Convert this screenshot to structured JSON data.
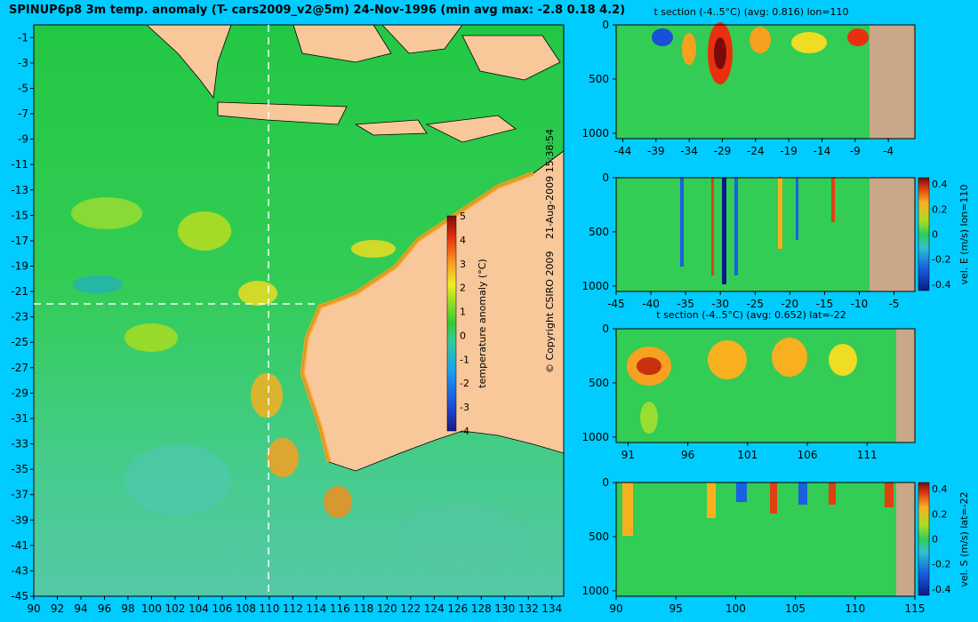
{
  "title": "SPINUP6p8 3m temp. anomaly (T- cars2009_v2@5m) 24-Nov-1996 (min avg max: -2.8 0.18 4.2)",
  "copyright": "© Copyright CSIRO 2009",
  "timestamp": "21-Aug-2009 15:38:54",
  "colors": {
    "background": "#00ccff",
    "land": "#f8c79a",
    "section_land": "#c8a888"
  },
  "chart_data": [
    {
      "type": "heatmap",
      "name": "map",
      "title": "",
      "x_ticks": [
        "90",
        "92",
        "94",
        "96",
        "98",
        "100",
        "102",
        "104",
        "106",
        "108",
        "110",
        "112",
        "114",
        "116",
        "118",
        "120",
        "122",
        "124",
        "126",
        "128",
        "130",
        "132",
        "134"
      ],
      "y_ticks": [
        "-1",
        "-3",
        "-5",
        "-7",
        "-9",
        "-11",
        "-13",
        "-15",
        "-17",
        "-19",
        "-21",
        "-23",
        "-25",
        "-27",
        "-29",
        "-31",
        "-33",
        "-35",
        "-37",
        "-39",
        "-41",
        "-43",
        "-45"
      ],
      "xlim": [
        90,
        135
      ],
      "ylim": [
        -45,
        0
      ],
      "crosshair": {
        "lon": 110,
        "lat": -22
      },
      "colorbar": {
        "label": "temperature anomaly (°C)",
        "ticks": [
          "5",
          "4",
          "3",
          "2",
          "1",
          "0",
          "-1",
          "-2",
          "-3",
          "-4"
        ],
        "range": [
          -4,
          5
        ]
      }
    },
    {
      "type": "heatmap",
      "name": "t-section-lon",
      "title": "t section (-4..5°C) (avg: 0.816) lon=110",
      "x_ticks": [
        "-44",
        "-39",
        "-34",
        "-29",
        "-24",
        "-19",
        "-14",
        "-9",
        "-4"
      ],
      "xlim": [
        -45,
        0
      ],
      "y_ticks": [
        "0",
        "500",
        "1000"
      ],
      "ylim": [
        0,
        1050
      ]
    },
    {
      "type": "heatmap",
      "name": "vel-e-section",
      "title": "",
      "x_ticks": [
        "-45",
        "-40",
        "-35",
        "-30",
        "-25",
        "-20",
        "-15",
        "-10",
        "-5"
      ],
      "xlim": [
        -45,
        -2
      ],
      "y_ticks": [
        "0",
        "500",
        "1000"
      ],
      "ylim": [
        0,
        1050
      ],
      "colorbar": {
        "label": "vel. E (m/s) lon=110",
        "ticks": [
          "0.4",
          "0.2",
          "0",
          "-0.2",
          "-0.4"
        ],
        "range": [
          -0.45,
          0.45
        ]
      }
    },
    {
      "type": "heatmap",
      "name": "t-section-lat",
      "title": "t section (-4..5°C) (avg: 0.652) lat=-22",
      "x_ticks": [
        "91",
        "96",
        "101",
        "106",
        "111"
      ],
      "xlim": [
        90,
        115
      ],
      "y_ticks": [
        "0",
        "500",
        "1000"
      ],
      "ylim": [
        0,
        1050
      ]
    },
    {
      "type": "heatmap",
      "name": "vel-s-section",
      "title": "",
      "x_ticks": [
        "90",
        "95",
        "100",
        "105",
        "110",
        "115"
      ],
      "xlim": [
        90,
        115
      ],
      "y_ticks": [
        "0",
        "500",
        "1000"
      ],
      "ylim": [
        0,
        1050
      ],
      "colorbar": {
        "label": "vel. S (m/s) lat=-22",
        "ticks": [
          "0.4",
          "0.2",
          "0",
          "-0.2",
          "-0.4"
        ],
        "range": [
          -0.45,
          0.45
        ]
      }
    }
  ]
}
